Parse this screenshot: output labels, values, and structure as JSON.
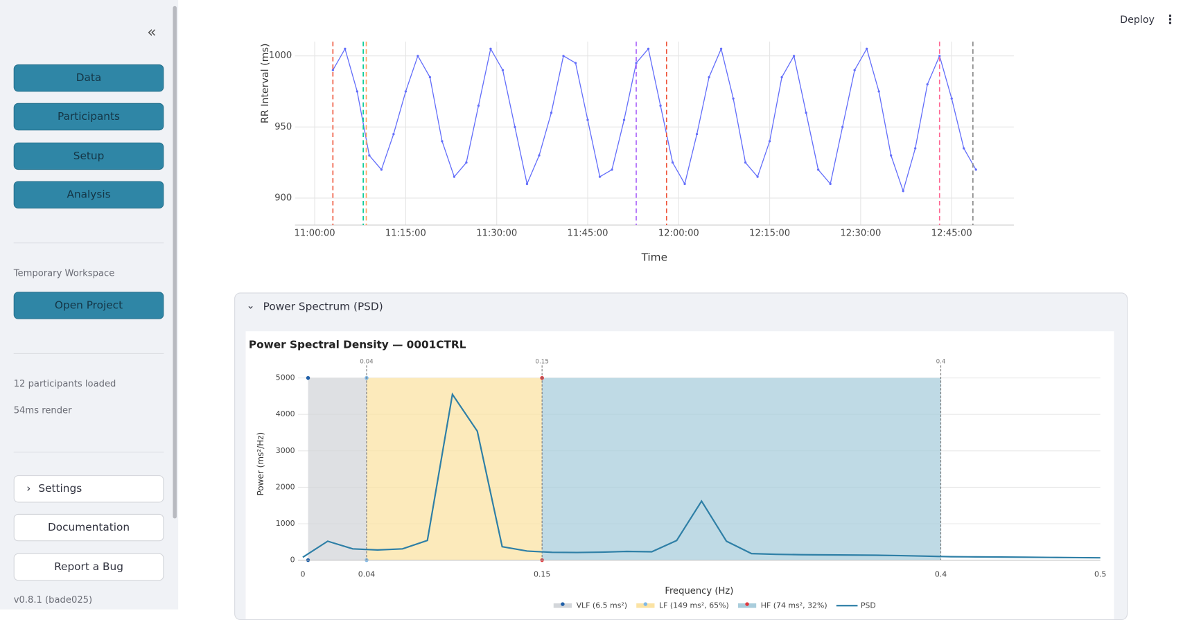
{
  "header": {
    "deploy": "Deploy"
  },
  "sidebar": {
    "buttons": [
      "Data",
      "Participants",
      "Setup",
      "Analysis"
    ],
    "workspace_label": "Temporary Workspace",
    "open_project": "Open Project",
    "status": [
      "12 participants loaded",
      "54ms render"
    ],
    "settings": "Settings",
    "links": [
      "Documentation",
      "Report a Bug"
    ],
    "version": "v0.8.1 (bade025)"
  },
  "expander": {
    "title": "Power Spectrum (PSD)"
  },
  "chart_data": [
    {
      "type": "line",
      "x_label": "Time",
      "y_label": "RR Interval (ms)",
      "x": [
        "11:03:00",
        "11:05:00",
        "11:07:00",
        "11:09:00",
        "11:11:00",
        "11:13:00",
        "11:15:00",
        "11:17:00",
        "11:19:00",
        "11:21:00",
        "11:23:00",
        "11:25:00",
        "11:27:00",
        "11:29:00",
        "11:31:00",
        "11:33:00",
        "11:35:00",
        "11:37:00",
        "11:39:00",
        "11:41:00",
        "11:43:00",
        "11:45:00",
        "11:47:00",
        "11:49:00",
        "11:51:00",
        "11:53:00",
        "11:55:00",
        "11:57:00",
        "11:59:00",
        "12:01:00",
        "12:03:00",
        "12:05:00",
        "12:07:00",
        "12:09:00",
        "12:11:00",
        "12:13:00",
        "12:15:00",
        "12:17:00",
        "12:19:00",
        "12:21:00",
        "12:23:00",
        "12:25:00",
        "12:27:00",
        "12:29:00",
        "12:31:00",
        "12:33:00",
        "12:35:00",
        "12:37:00",
        "12:39:00",
        "12:41:00",
        "12:43:00",
        "12:45:00",
        "12:47:00",
        "12:49:00"
      ],
      "series": [
        {
          "color": "#636efa",
          "values": [
            990,
            1005,
            975,
            930,
            920,
            945,
            975,
            1000,
            985,
            940,
            915,
            925,
            965,
            1005,
            990,
            950,
            910,
            930,
            960,
            1000,
            995,
            955,
            915,
            920,
            955,
            995,
            1005,
            965,
            925,
            910,
            945,
            985,
            1005,
            970,
            925,
            915,
            940,
            985,
            1000,
            960,
            920,
            910,
            950,
            990,
            1005,
            975,
            930,
            905,
            935,
            980,
            1000,
            970,
            935,
            920
          ]
        }
      ],
      "xlim": [
        "10:56:45",
        "12:55:15"
      ],
      "xticks": [
        "11:00:00",
        "11:15:00",
        "11:30:00",
        "11:45:00",
        "12:00:00",
        "12:15:00",
        "12:30:00",
        "12:45:00"
      ],
      "ylim": [
        881,
        1010
      ],
      "yticks": [
        900,
        950,
        1000
      ],
      "grid": true,
      "events": [
        {
          "x": "11:03:00",
          "color": "#ef553b"
        },
        {
          "x": "11:08:00",
          "color": "#00cc96"
        },
        {
          "x": "11:08:30",
          "color": "#ffa15a"
        },
        {
          "x": "11:53:00",
          "color": "#ab63fa"
        },
        {
          "x": "11:58:00",
          "color": "#ef553b"
        },
        {
          "x": "12:43:00",
          "color": "#ff6692"
        },
        {
          "x": "12:48:30",
          "color": "#888888"
        }
      ]
    },
    {
      "type": "psd",
      "title": "Power Spectral Density — 0001CTRL",
      "x_label": "Frequency (Hz)",
      "y_label": "Power (ms²/Hz)",
      "x": [
        0,
        0.0156,
        0.0313,
        0.0469,
        0.0625,
        0.0781,
        0.0938,
        0.1094,
        0.125,
        0.1406,
        0.1563,
        0.1719,
        0.1875,
        0.2031,
        0.2188,
        0.2344,
        0.25,
        0.2656,
        0.2813,
        0.2969,
        0.3125,
        0.3281,
        0.3438,
        0.3594,
        0.375,
        0.3906,
        0.4063,
        0.4219,
        0.4375,
        0.4531,
        0.4688,
        0.4844,
        0.5
      ],
      "series": [
        {
          "name": "PSD",
          "color": "#2e7fa6",
          "values": [
            80,
            520,
            310,
            280,
            310,
            540,
            4550,
            3540,
            370,
            250,
            215,
            210,
            220,
            240,
            230,
            540,
            1620,
            520,
            180,
            160,
            150,
            145,
            140,
            135,
            125,
            110,
            95,
            90,
            85,
            80,
            75,
            70,
            65
          ]
        }
      ],
      "bands": [
        {
          "name": "VLF (6.5 ms²)",
          "range": [
            0.0033,
            0.04
          ],
          "color": "#d3d6da",
          "dot": "#1f5fa8"
        },
        {
          "name": "LF (149 ms², 65%)",
          "range": [
            0.04,
            0.15
          ],
          "color": "#fbe3a4",
          "dot": "#7fb8e6"
        },
        {
          "name": "HF (74 ms², 32%)",
          "range": [
            0.15,
            0.4
          ],
          "color": "#a9cddc",
          "dot": "#e0393e"
        }
      ],
      "band_top": 5000,
      "annotations": [
        0.04,
        0.15,
        0.4
      ],
      "xlim": [
        -0.003,
        0.5
      ],
      "xticks": [
        0,
        0.04,
        0.15,
        0.4,
        0.5
      ],
      "ylim": [
        0,
        5200
      ],
      "yticks": [
        0,
        1000,
        2000,
        3000,
        4000,
        5000
      ],
      "grid": true
    }
  ]
}
